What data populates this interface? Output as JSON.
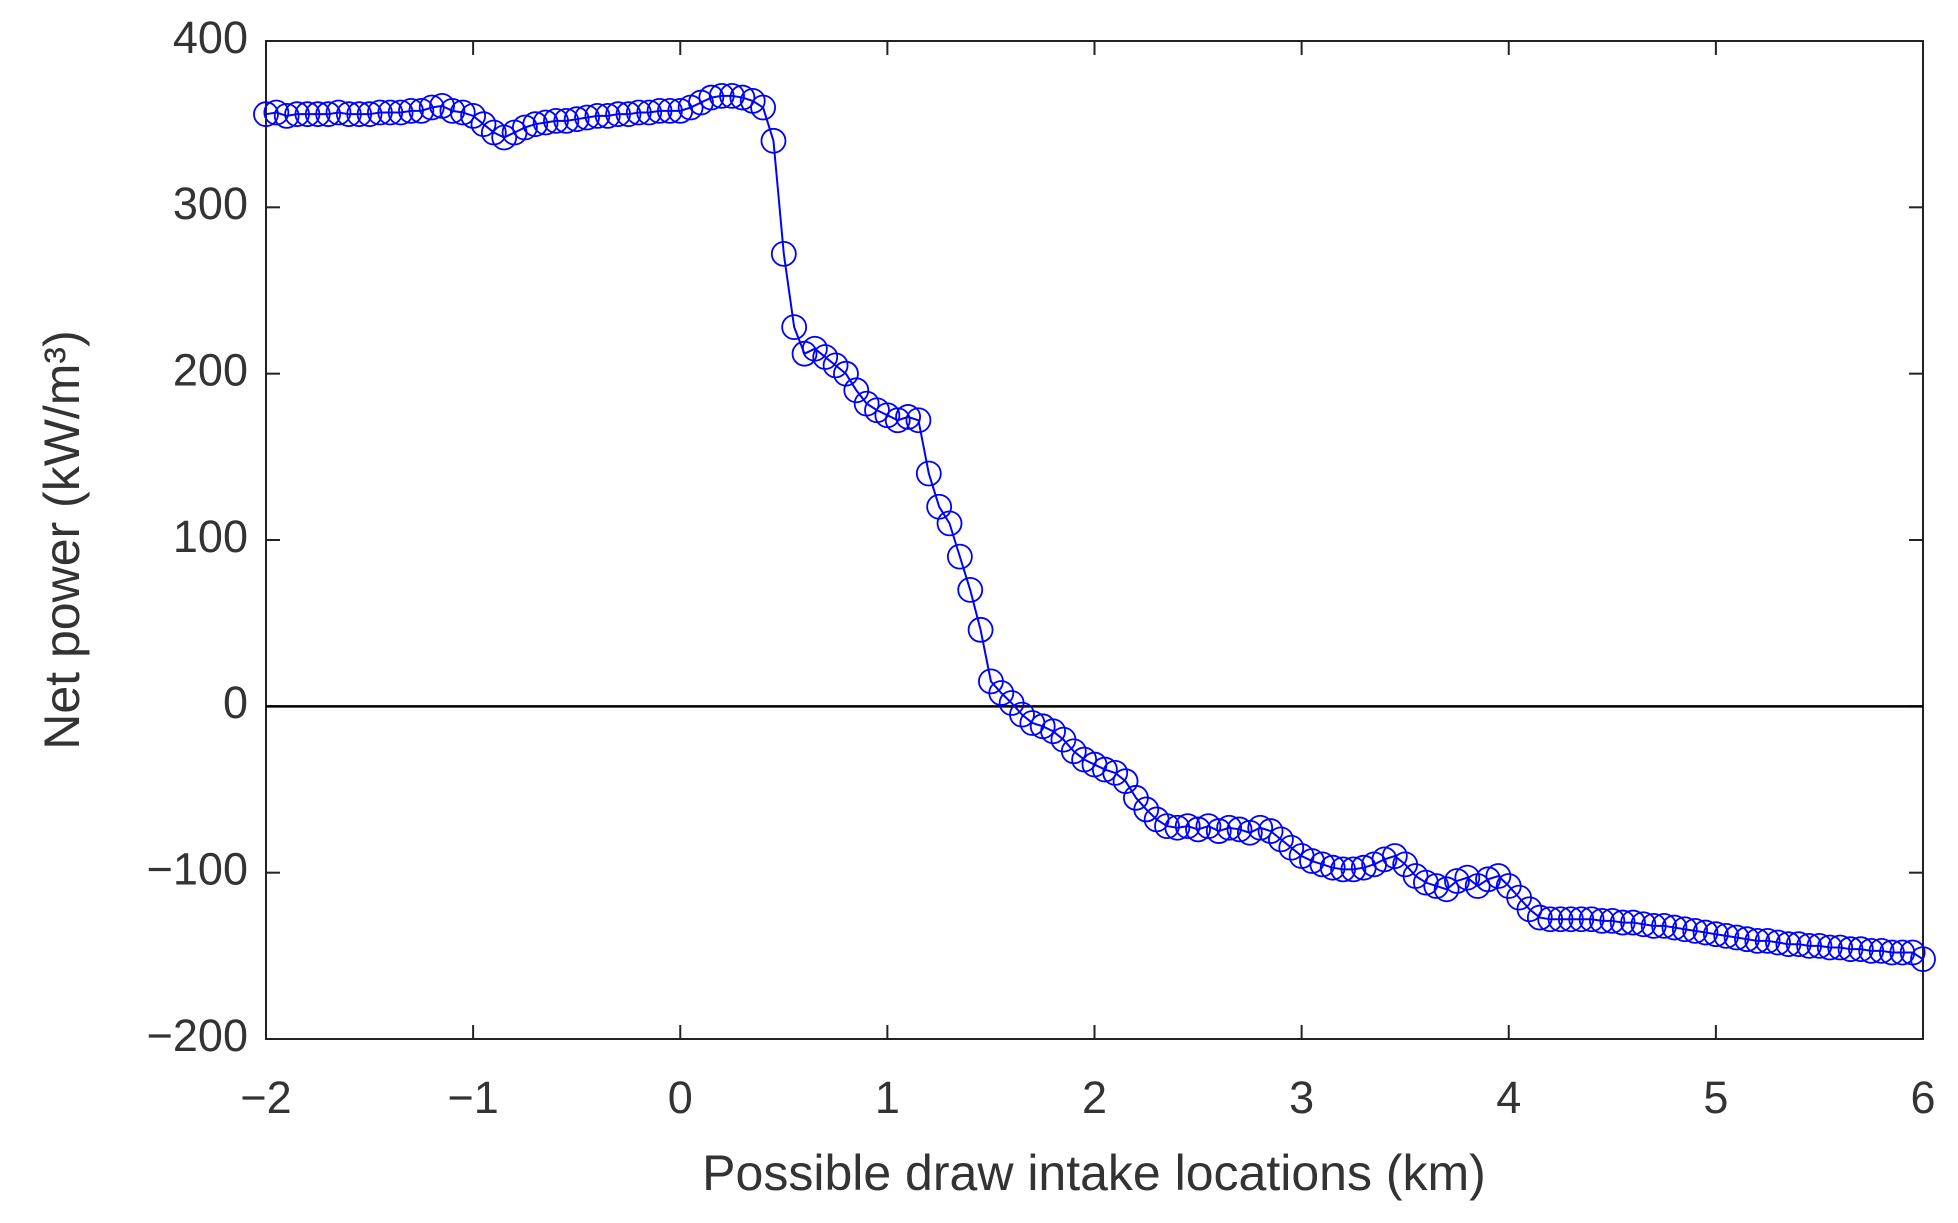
{
  "chart_data": {
    "type": "line",
    "x_label": "Possible draw intake locations (km)",
    "y_label": "Net power (kW/m³)",
    "x": [
      -2,
      -1.95,
      -1.9,
      -1.85,
      -1.8,
      -1.75,
      -1.7,
      -1.65,
      -1.6,
      -1.55,
      -1.5,
      -1.45,
      -1.4,
      -1.35,
      -1.3,
      -1.25,
      -1.2,
      -1.15,
      -1.1,
      -1.05,
      -1,
      -0.95,
      -0.9,
      -0.85,
      -0.8,
      -0.75,
      -0.7,
      -0.65,
      -0.6,
      -0.55,
      -0.5,
      -0.45,
      -0.4,
      -0.35,
      -0.3,
      -0.25,
      -0.2,
      -0.15,
      -0.1,
      -0.05,
      0,
      0.05,
      0.1,
      0.15,
      0.2,
      0.25,
      0.3,
      0.35,
      0.4,
      0.45,
      0.5,
      0.55,
      0.6,
      0.65,
      0.7,
      0.75,
      0.8,
      0.85,
      0.9,
      0.95,
      1,
      1.05,
      1.1,
      1.15,
      1.2,
      1.25,
      1.3,
      1.35,
      1.4,
      1.45,
      1.5,
      1.55,
      1.6,
      1.65,
      1.7,
      1.75,
      1.8,
      1.85,
      1.9,
      1.95,
      2,
      2.05,
      2.1,
      2.15,
      2.2,
      2.25,
      2.3,
      2.35,
      2.4,
      2.45,
      2.5,
      2.55,
      2.6,
      2.65,
      2.7,
      2.75,
      2.8,
      2.85,
      2.9,
      2.95,
      3,
      3.05,
      3.1,
      3.15,
      3.2,
      3.25,
      3.3,
      3.35,
      3.4,
      3.45,
      3.5,
      3.55,
      3.6,
      3.65,
      3.7,
      3.75,
      3.8,
      3.85,
      3.9,
      3.95,
      4,
      4.05,
      4.1,
      4.15,
      4.2,
      4.25,
      4.3,
      4.35,
      4.4,
      4.45,
      4.5,
      4.55,
      4.6,
      4.65,
      4.7,
      4.75,
      4.8,
      4.85,
      4.9,
      4.95,
      5,
      5.05,
      5.1,
      5.15,
      5.2,
      5.25,
      5.3,
      5.35,
      5.4,
      5.45,
      5.5,
      5.55,
      5.6,
      5.65,
      5.7,
      5.75,
      5.8,
      5.85,
      5.9,
      5.95,
      6
    ],
    "series": [
      {
        "color": "#0000ff",
        "marker": "circle",
        "values": [
          356,
          357,
          355,
          356,
          356,
          356,
          356,
          357,
          356,
          356,
          356,
          357,
          357,
          357,
          358,
          358,
          360,
          361,
          358,
          357,
          355,
          350,
          345,
          342,
          345,
          348,
          350,
          351,
          352,
          352,
          353,
          354,
          355,
          355,
          356,
          356,
          357,
          357,
          358,
          358,
          358,
          360,
          363,
          366,
          367,
          367,
          366,
          364,
          360,
          340,
          272,
          228,
          212,
          215,
          210,
          205,
          200,
          190,
          182,
          178,
          175,
          172,
          174,
          172,
          140,
          120,
          110,
          90,
          70,
          46,
          15,
          8,
          2,
          -5,
          -10,
          -12,
          -15,
          -20,
          -27,
          -32,
          -35,
          -38,
          -40,
          -45,
          -55,
          -62,
          -68,
          -72,
          -73,
          -72,
          -74,
          -72,
          -75,
          -73,
          -74,
          -76,
          -73,
          -75,
          -80,
          -85,
          -90,
          -93,
          -95,
          -97,
          -98,
          -98,
          -97,
          -95,
          -92,
          -90,
          -95,
          -102,
          -106,
          -108,
          -110,
          -105,
          -103,
          -108,
          -104,
          -102,
          -108,
          -115,
          -122,
          -127,
          -128,
          -128,
          -128,
          -128,
          -128,
          -129,
          -129,
          -130,
          -130,
          -131,
          -132,
          -132,
          -133,
          -134,
          -135,
          -136,
          -137,
          -138,
          -139,
          -140,
          -141,
          -141,
          -142,
          -143,
          -143,
          -144,
          -144,
          -145,
          -145,
          -146,
          -146,
          -147,
          -147,
          -148,
          -148,
          -148,
          -152
        ]
      }
    ],
    "xlim": [
      -2,
      6
    ],
    "xticks": [
      {
        "value": -2,
        "label": "−2"
      },
      {
        "value": -1,
        "label": "−1"
      },
      0,
      1,
      2,
      3,
      4,
      5,
      6
    ],
    "ylim": [
      -200,
      400
    ],
    "yticks": [
      {
        "value": -200,
        "label": "−200"
      },
      {
        "value": -100,
        "label": "−100"
      },
      0,
      100,
      200,
      300,
      400
    ],
    "reference_line_y": 0,
    "grid": false
  }
}
